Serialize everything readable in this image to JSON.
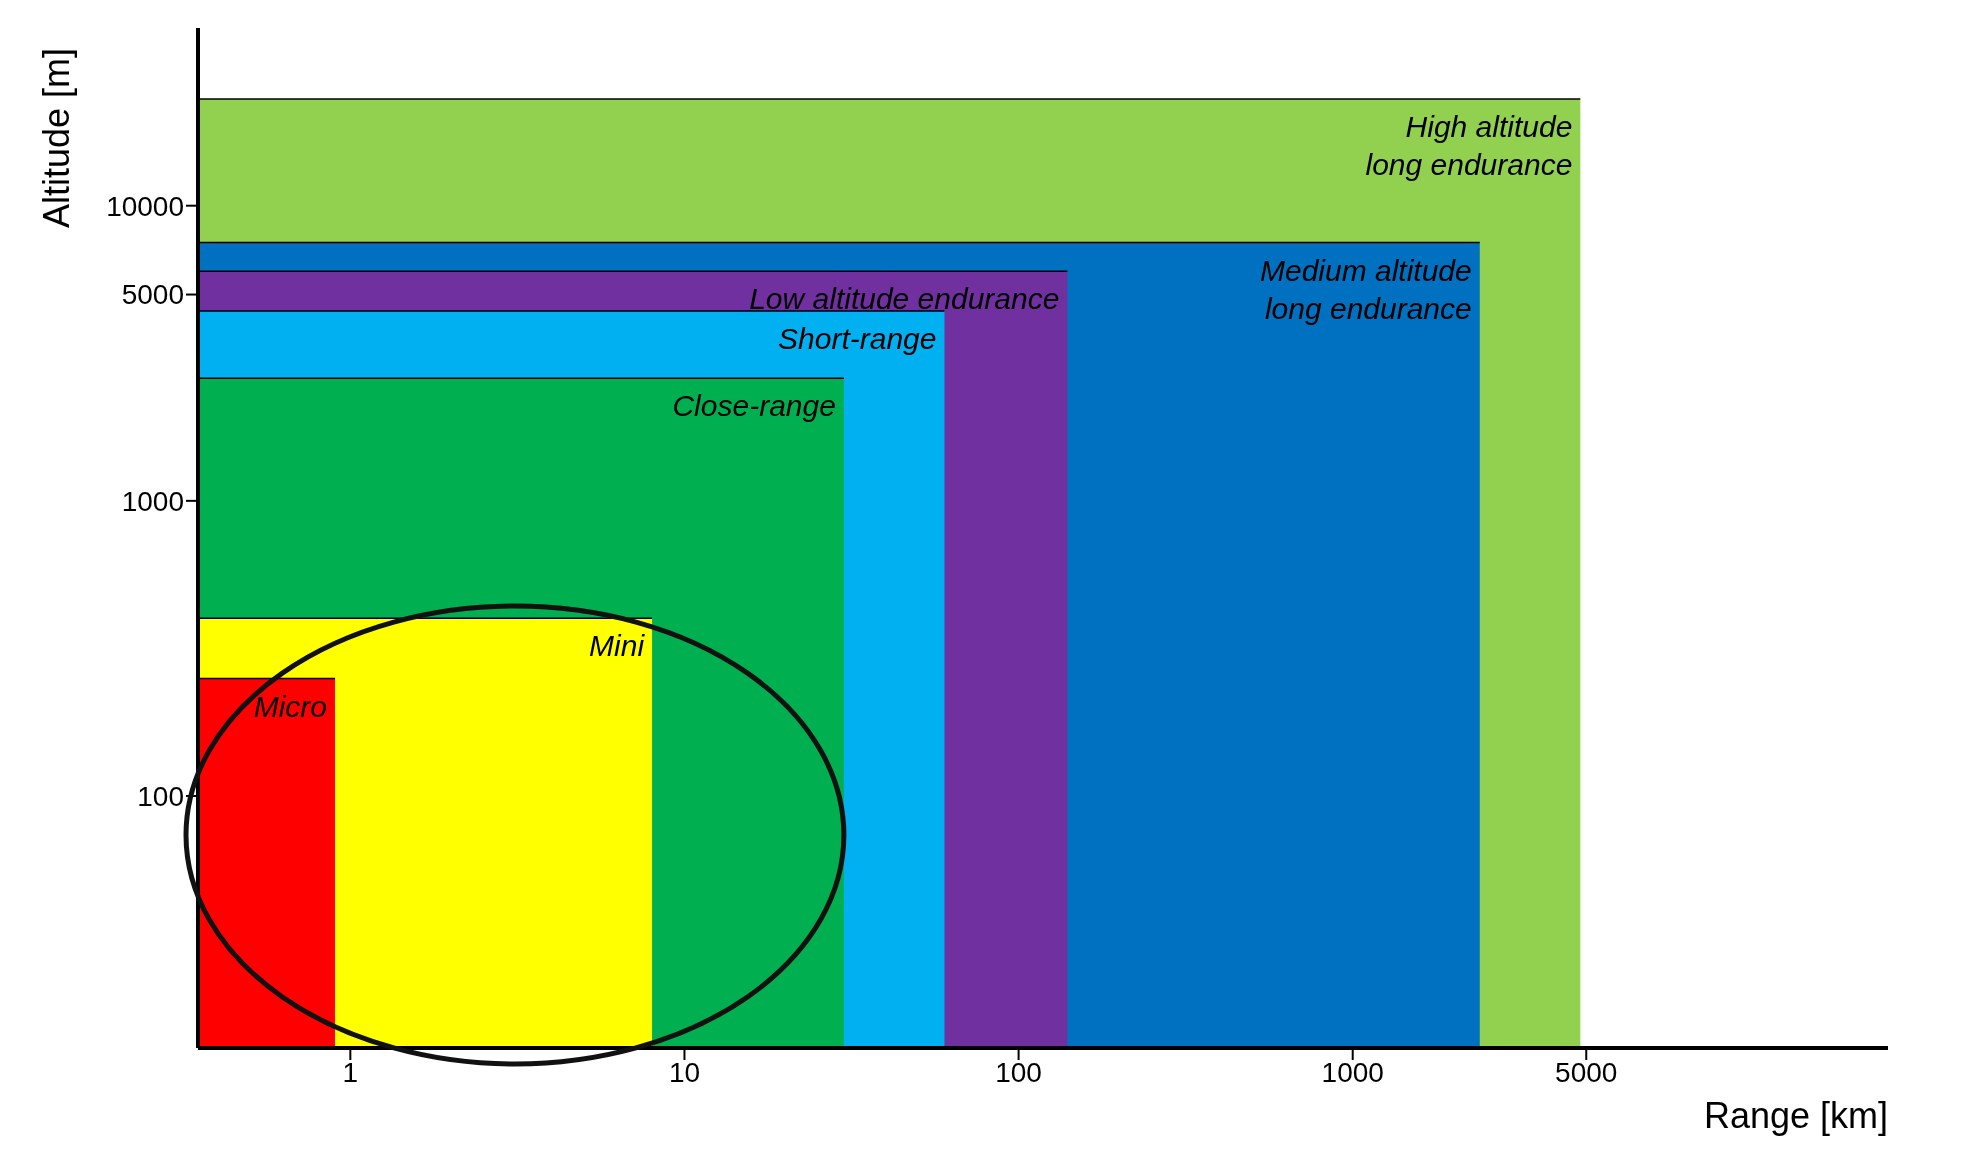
{
  "chart_data": {
    "type": "area",
    "xlabel": "Range [km]",
    "ylabel": "Altitude [m]",
    "log": "xy",
    "xlim": [
      0.35,
      40000
    ],
    "xticks": [
      1,
      10,
      100,
      1000,
      5000
    ],
    "ylim": [
      14,
      40000
    ],
    "yticks": [
      100,
      1000,
      5000,
      10000
    ],
    "series": [
      {
        "name": "High altitude long endurance",
        "color": "#92d050",
        "x": [
          0.35,
          4800
        ],
        "values": [
          23000,
          23000
        ]
      },
      {
        "name": "Medium altitude long endurance",
        "color": "#0070c0",
        "x": [
          0.35,
          2400
        ],
        "values": [
          7500,
          7500
        ]
      },
      {
        "name": "Low altitude endurance",
        "color": "#7030a0",
        "x": [
          0.35,
          140
        ],
        "values": [
          6000,
          6000
        ]
      },
      {
        "name": "Short-range",
        "color": "#00b0f0",
        "x": [
          0.35,
          60
        ],
        "values": [
          4400,
          4400
        ]
      },
      {
        "name": "Close-range",
        "color": "#00b050",
        "x": [
          0.35,
          30
        ],
        "values": [
          2600,
          2600
        ]
      },
      {
        "name": "Mini",
        "color": "#ffff00",
        "x": [
          0.35,
          8
        ],
        "values": [
          400,
          400
        ]
      },
      {
        "name": "Micro",
        "color": "#ff0000",
        "x": [
          0.35,
          0.9
        ],
        "values": [
          250,
          250
        ]
      }
    ]
  }
}
